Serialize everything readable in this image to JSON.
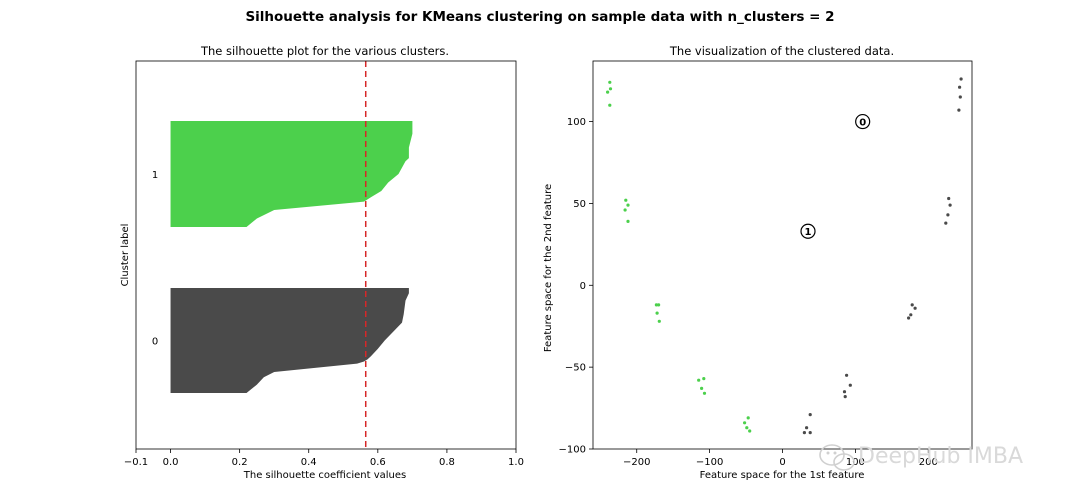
{
  "figure": {
    "suptitle": "Silhouette analysis for KMeans clustering on sample data with n_clusters = 2",
    "watermark": "DeepHub IMBA"
  },
  "chart_data": [
    {
      "type": "area",
      "title": "The silhouette plot for the various clusters.",
      "xlabel": "The silhouette coefficient values",
      "ylabel": "Cluster label",
      "xlim": [
        -0.1,
        1.0
      ],
      "xticks": [
        "−0.1",
        "0.0",
        "0.2",
        "0.4",
        "0.6",
        "0.8",
        "1.0"
      ],
      "xtick_values": [
        -0.1,
        0.0,
        0.2,
        0.4,
        0.6,
        0.8,
        1.0
      ],
      "average_silhouette": 0.565,
      "average_line_style": "red dashed",
      "clusters": [
        {
          "label": "0",
          "color": "#4a4a4a",
          "profile": [
            [
              0.69,
              0.0
            ],
            [
              0.69,
              0.05
            ],
            [
              0.68,
              0.12
            ],
            [
              0.675,
              0.25
            ],
            [
              0.67,
              0.33
            ],
            [
              0.62,
              0.5
            ],
            [
              0.6,
              0.58
            ],
            [
              0.58,
              0.65
            ],
            [
              0.57,
              0.68
            ],
            [
              0.56,
              0.7
            ],
            [
              0.54,
              0.72
            ],
            [
              0.3,
              0.8
            ],
            [
              0.27,
              0.85
            ],
            [
              0.25,
              0.92
            ],
            [
              0.22,
              1.0
            ]
          ]
        },
        {
          "label": "1",
          "color": "#4cd04c",
          "profile": [
            [
              0.7,
              0.0
            ],
            [
              0.7,
              0.12
            ],
            [
              0.69,
              0.25
            ],
            [
              0.69,
              0.35
            ],
            [
              0.68,
              0.38
            ],
            [
              0.66,
              0.5
            ],
            [
              0.63,
              0.58
            ],
            [
              0.61,
              0.66
            ],
            [
              0.58,
              0.72
            ],
            [
              0.56,
              0.76
            ],
            [
              0.3,
              0.84
            ],
            [
              0.25,
              0.92
            ],
            [
              0.22,
              1.0
            ]
          ]
        }
      ]
    },
    {
      "type": "scatter",
      "title": "The visualization of the clustered data.",
      "xlabel": "Feature space for the 1st feature",
      "ylabel": "Feature space for the 2nd feature",
      "xlim": [
        -260,
        260
      ],
      "ylim": [
        -100,
        137
      ],
      "xticks": [
        "−200",
        "−100",
        "0",
        "100",
        "200"
      ],
      "xtick_values": [
        -200,
        -100,
        0,
        100,
        200
      ],
      "yticks": [
        "100",
        "50",
        "0",
        "−50",
        "−100"
      ],
      "ytick_values": [
        100,
        50,
        0,
        -50,
        -100
      ],
      "series": [
        {
          "cluster": "0",
          "color": "#4a4a4a",
          "points": [
            [
              245,
              126
            ],
            [
              243,
              121
            ],
            [
              244,
              115
            ],
            [
              242,
              107
            ],
            [
              228,
              53
            ],
            [
              230,
              49
            ],
            [
              227,
              43
            ],
            [
              224,
              38
            ],
            [
              178,
              -12
            ],
            [
              182,
              -14
            ],
            [
              176,
              -18
            ],
            [
              173,
              -20
            ],
            [
              88,
              -55
            ],
            [
              93,
              -61
            ],
            [
              85,
              -65
            ],
            [
              86,
              -68
            ],
            [
              38,
              -79
            ],
            [
              33,
              -87
            ],
            [
              30,
              -90
            ],
            [
              38,
              -90
            ]
          ]
        },
        {
          "cluster": "1",
          "color": "#4cd04c",
          "points": [
            [
              -237,
              124
            ],
            [
              -240,
              118
            ],
            [
              -236,
              120
            ],
            [
              -237,
              110
            ],
            [
              -215,
              52
            ],
            [
              -212,
              49
            ],
            [
              -216,
              46
            ],
            [
              -212,
              39
            ],
            [
              -173,
              -12
            ],
            [
              -170,
              -12
            ],
            [
              -172,
              -17
            ],
            [
              -169,
              -22
            ],
            [
              -115,
              -58
            ],
            [
              -108,
              -57
            ],
            [
              -111,
              -63
            ],
            [
              -107,
              -66
            ],
            [
              -47,
              -81
            ],
            [
              -52,
              -84
            ],
            [
              -49,
              -87
            ],
            [
              -45,
              -89
            ]
          ]
        }
      ],
      "centers": [
        {
          "label": "0",
          "x": 110,
          "y": 100
        },
        {
          "label": "1",
          "x": 35,
          "y": 33
        }
      ]
    }
  ]
}
